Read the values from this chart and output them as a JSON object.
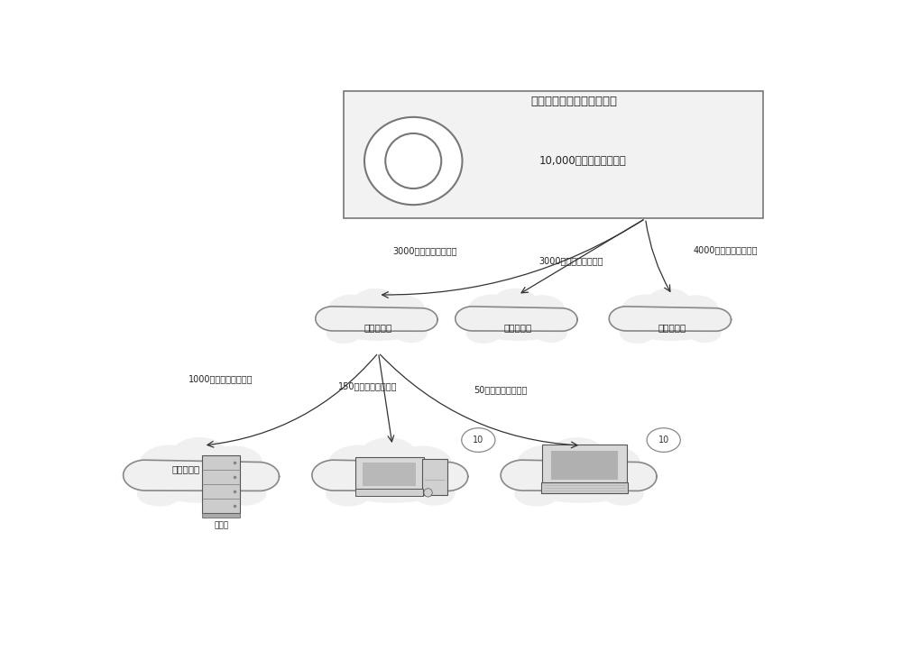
{
  "title": "大规模云节点服务中心平台",
  "platform_label": "10,000分钟动画模型渲染",
  "ctrl_label": "云控制节点",
  "work_label": "云工作节点",
  "server_label": "服务器",
  "badge_text": "10",
  "arrow_labels_top": [
    "3000分钟动画模型渲染",
    "3000分钟动画模型渲染",
    "4000分钟动画模型渲染"
  ],
  "arrow_labels_bottom": [
    "1000分钟动画模型渲染",
    "150分钟动画模型渲染",
    "50分钟动画模型渲染"
  ],
  "cloud_fill": "#f0f0f0",
  "cloud_edge": "#888888",
  "box_fill": "#f0f0f0",
  "box_edge": "#666666",
  "arrow_color": "#333333",
  "text_color": "#222222",
  "bg_color": "#ffffff"
}
